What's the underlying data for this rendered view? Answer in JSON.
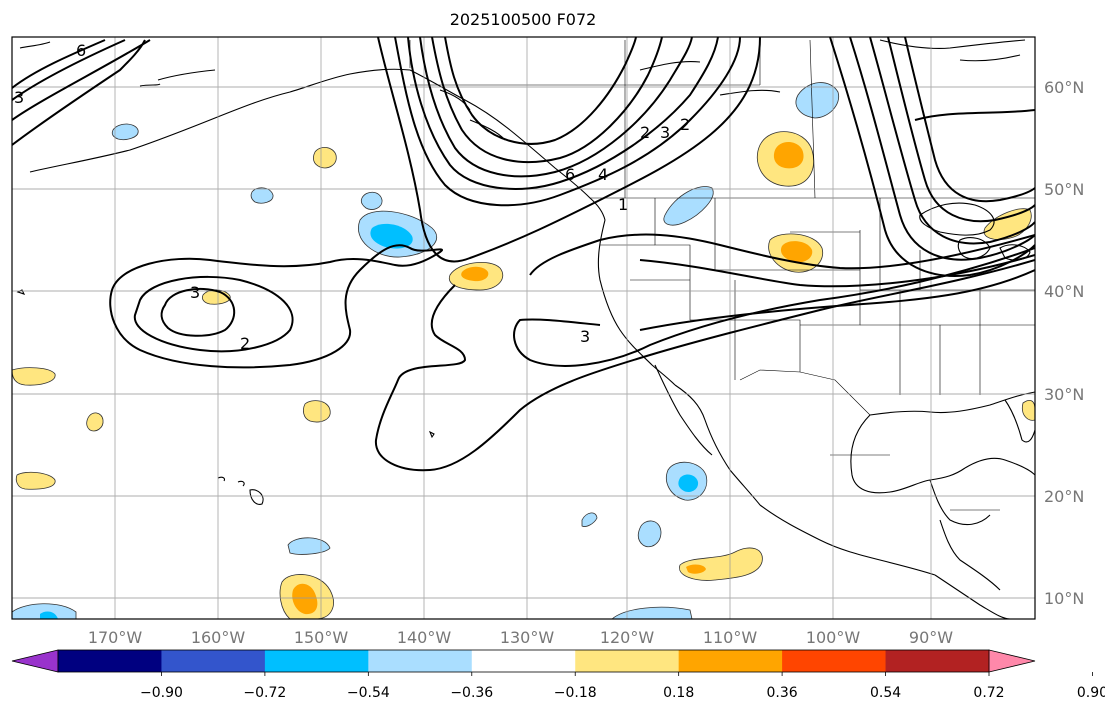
{
  "title": "2025100500 F072",
  "map": {
    "lon_labels": [
      "170°W",
      "160°W",
      "150°W",
      "140°W",
      "130°W",
      "120°W",
      "110°W",
      "100°W",
      "90°W"
    ],
    "lat_labels": [
      "60°N",
      "50°N",
      "40°N",
      "30°N",
      "20°N",
      "10°N"
    ],
    "contour_labels": [
      "3",
      "2",
      "3",
      "6",
      "4",
      "2",
      "3",
      "2",
      "1",
      "3",
      "6"
    ]
  },
  "colorbar": {
    "colors": [
      "#9933cc",
      "#000080",
      "#3355cc",
      "#00bfff",
      "#aadeff",
      "#ffffff",
      "#ffe680",
      "#ffa500",
      "#ff4500",
      "#b22222",
      "#ff88aa"
    ],
    "labels": [
      "−0.90",
      "−0.72",
      "−0.54",
      "−0.36",
      "−0.18",
      "0.18",
      "0.36",
      "0.54",
      "0.72",
      "0.90"
    ]
  },
  "colors": {
    "land_outline": "#000000",
    "grid": "#999999",
    "contour": "#000000"
  }
}
